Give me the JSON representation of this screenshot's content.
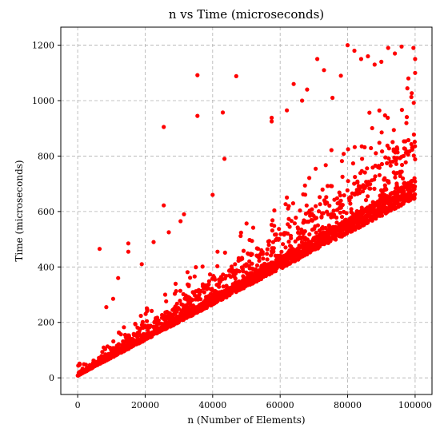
{
  "chart_data": {
    "type": "scatter",
    "title": "n vs Time (microseconds)",
    "xlabel": "n (Number of Elements)",
    "ylabel": "Time (microseconds)",
    "xlim": [
      -5000,
      105000
    ],
    "ylim": [
      -60,
      1265
    ],
    "xticks": [
      0,
      20000,
      40000,
      60000,
      80000,
      100000
    ],
    "yticks": [
      0,
      200,
      400,
      600,
      800,
      1000,
      1200
    ],
    "xtick_labels": [
      "0",
      "20000",
      "40000",
      "60000",
      "80000",
      "100000"
    ],
    "ytick_labels": [
      "0",
      "200",
      "400",
      "600",
      "800",
      "1000",
      "1200"
    ],
    "grid": true,
    "series": [
      {
        "color": "#ff0000",
        "baseline": {
          "slope": 0.0064,
          "intercept": 8
        },
        "outliers": [
          [
            6500,
            465
          ],
          [
            15000,
            485
          ],
          [
            15000,
            455
          ],
          [
            25500,
            905
          ],
          [
            25500,
            622
          ],
          [
            35500,
            1092
          ],
          [
            35500,
            945
          ],
          [
            43000,
            957
          ],
          [
            47000,
            1088
          ],
          [
            43500,
            790
          ],
          [
            40000,
            660
          ],
          [
            31500,
            590
          ],
          [
            30500,
            565
          ],
          [
            57500,
            938
          ],
          [
            57500,
            925
          ],
          [
            64000,
            1060
          ],
          [
            68000,
            1040
          ],
          [
            71000,
            1150
          ],
          [
            75500,
            1010
          ],
          [
            78000,
            1090
          ],
          [
            80000,
            1200
          ],
          [
            82000,
            1180
          ],
          [
            86000,
            1160
          ],
          [
            90000,
            1140
          ],
          [
            92000,
            1190
          ],
          [
            96000,
            1195
          ],
          [
            98000,
            1080
          ],
          [
            99500,
            1190
          ],
          [
            100000,
            1150
          ],
          [
            100000,
            1100
          ],
          [
            62000,
            965
          ],
          [
            66500,
            1000
          ],
          [
            73000,
            1110
          ],
          [
            84000,
            1150
          ],
          [
            88000,
            1130
          ],
          [
            94000,
            1170
          ],
          [
            27000,
            525
          ],
          [
            22500,
            490
          ],
          [
            19000,
            410
          ],
          [
            12000,
            360
          ],
          [
            8500,
            255
          ],
          [
            10500,
            285
          ]
        ]
      }
    ]
  }
}
